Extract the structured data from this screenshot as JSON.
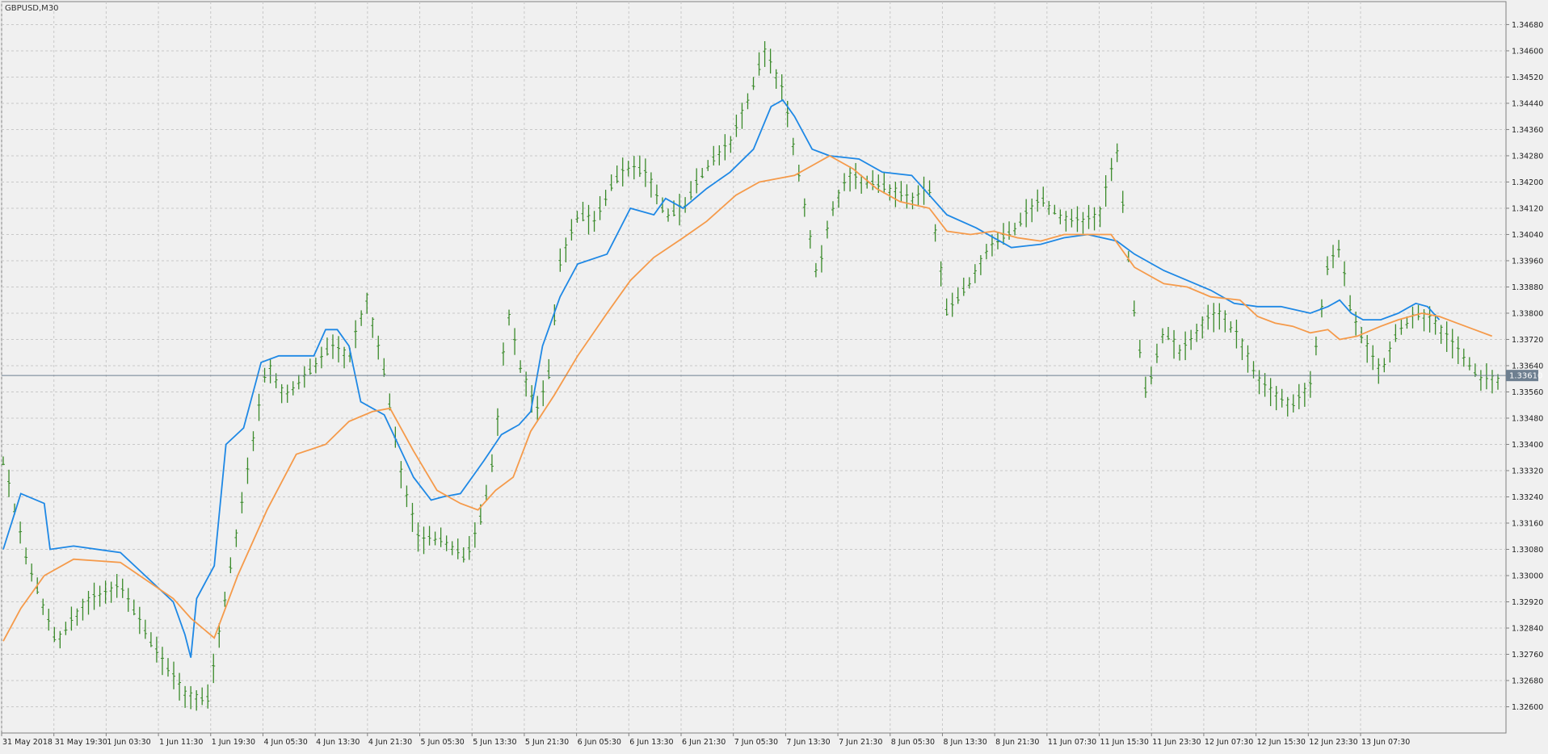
{
  "chart_data": {
    "type": "line",
    "symbol_label": "GBPUSD,M30",
    "current_price_label": "1.33610",
    "current_price": 1.3361,
    "ylim": [
      1.3252,
      1.3475
    ],
    "y_ticks": [
      "1.34680",
      "1.34600",
      "1.34520",
      "1.34440",
      "1.34360",
      "1.34280",
      "1.34200",
      "1.34120",
      "1.34040",
      "1.33960",
      "1.33880",
      "1.33800",
      "1.33720",
      "1.33640",
      "1.33560",
      "1.33480",
      "1.33400",
      "1.33320",
      "1.33240",
      "1.33160",
      "1.33080",
      "1.33000",
      "1.32920",
      "1.32840",
      "1.32760",
      "1.32680",
      "1.32600"
    ],
    "x_ticks": [
      "31 May 2018",
      "31 May 19:30",
      "1 Jun 03:30",
      "1 Jun 11:30",
      "1 Jun 19:30",
      "4 Jun 05:30",
      "4 Jun 13:30",
      "4 Jun 21:30",
      "5 Jun 05:30",
      "5 Jun 13:30",
      "5 Jun 21:30",
      "6 Jun 05:30",
      "6 Jun 13:30",
      "6 Jun 21:30",
      "7 Jun 05:30",
      "7 Jun 13:30",
      "7 Jun 21:30",
      "8 Jun 05:30",
      "8 Jun 13:30",
      "8 Jun 21:30",
      "11 Jun 07:30",
      "11 Jun 15:30",
      "11 Jun 23:30",
      "12 Jun 07:30",
      "12 Jun 15:30",
      "12 Jun 23:30",
      "13 Jun 07:30"
    ],
    "grid": true,
    "colors": {
      "background": "#f0f0f0",
      "grid": "#c8c8c8",
      "axis": "#808080",
      "price_bars": "#3a8a2a",
      "series_blue": "#1e88e5",
      "series_orange": "#f59a4a",
      "current_price_line": "#6e7f90",
      "current_price_box": "#6e7f90"
    },
    "price_bars": {
      "bar_count": 264,
      "path": [
        [
          0,
          1.3335
        ],
        [
          8,
          1.3305
        ],
        [
          18,
          1.328
        ],
        [
          28,
          1.3292
        ],
        [
          40,
          1.3297
        ],
        [
          52,
          1.3277
        ],
        [
          62,
          1.3264
        ],
        [
          70,
          1.3262
        ],
        [
          76,
          1.3295
        ],
        [
          84,
          1.3335
        ],
        [
          90,
          1.3365
        ],
        [
          96,
          1.3355
        ],
        [
          104,
          1.3362
        ],
        [
          112,
          1.337
        ],
        [
          118,
          1.3367
        ],
        [
          124,
          1.3385
        ],
        [
          130,
          1.3362
        ],
        [
          136,
          1.333
        ],
        [
          142,
          1.331
        ],
        [
          146,
          1.3312
        ],
        [
          152,
          1.331
        ],
        [
          158,
          1.3305
        ],
        [
          164,
          1.332
        ],
        [
          168,
          1.334
        ],
        [
          172,
          1.3382
        ],
        [
          176,
          1.3365
        ],
        [
          182,
          1.335
        ],
        [
          186,
          1.336
        ],
        [
          190,
          1.3395
        ],
        [
          196,
          1.341
        ],
        [
          202,
          1.3408
        ],
        [
          208,
          1.342
        ],
        [
          214,
          1.3425
        ],
        [
          220,
          1.3422
        ],
        [
          226,
          1.341
        ],
        [
          232,
          1.3412
        ],
        [
          240,
          1.3425
        ],
        [
          248,
          1.3432
        ],
        [
          254,
          1.3445
        ],
        [
          260,
          1.346
        ],
        [
          266,
          1.3448
        ],
        [
          272,
          1.342
        ],
        [
          278,
          1.339
        ],
        [
          282,
          1.341
        ],
        [
          288,
          1.3422
        ],
        [
          296,
          1.342
        ],
        [
          302,
          1.3418
        ],
        [
          310,
          1.3415
        ],
        [
          316,
          1.3418
        ],
        [
          322,
          1.338
        ],
        [
          330,
          1.339
        ],
        [
          336,
          1.34
        ],
        [
          344,
          1.3405
        ],
        [
          354,
          1.3415
        ],
        [
          362,
          1.3409
        ],
        [
          368,
          1.3408
        ],
        [
          374,
          1.341
        ],
        [
          380,
          1.343
        ],
        [
          386,
          1.338
        ],
        [
          390,
          1.3355
        ],
        [
          396,
          1.3375
        ],
        [
          402,
          1.3368
        ],
        [
          410,
          1.3378
        ],
        [
          416,
          1.338
        ],
        [
          422,
          1.3372
        ],
        [
          428,
          1.336
        ],
        [
          434,
          1.3355
        ],
        [
          440,
          1.3352
        ],
        [
          446,
          1.3358
        ],
        [
          452,
          1.3395
        ],
        [
          456,
          1.34
        ],
        [
          460,
          1.338
        ],
        [
          464,
          1.3372
        ],
        [
          470,
          1.3362
        ],
        [
          476,
          1.3375
        ],
        [
          482,
          1.338
        ],
        [
          488,
          1.3378
        ],
        [
          494,
          1.3371
        ],
        [
          500,
          1.3365
        ],
        [
          504,
          1.336
        ],
        [
          510,
          1.336
        ]
      ],
      "wick": 0.00022
    },
    "series": [
      {
        "color_key": "series_blue",
        "points": [
          [
            0,
            1.3308
          ],
          [
            6,
            1.3325
          ],
          [
            14,
            1.3322
          ],
          [
            16,
            1.3308
          ],
          [
            24,
            1.3309
          ],
          [
            40,
            1.3307
          ],
          [
            58,
            1.3292
          ],
          [
            62,
            1.3282
          ],
          [
            64,
            1.3275
          ],
          [
            66,
            1.3293
          ],
          [
            72,
            1.3303
          ],
          [
            76,
            1.334
          ],
          [
            82,
            1.3345
          ],
          [
            88,
            1.3365
          ],
          [
            94,
            1.3367
          ],
          [
            100,
            1.3367
          ],
          [
            106,
            1.3367
          ],
          [
            110,
            1.3375
          ],
          [
            114,
            1.3375
          ],
          [
            118,
            1.337
          ],
          [
            122,
            1.3353
          ],
          [
            130,
            1.3349
          ],
          [
            140,
            1.333
          ],
          [
            146,
            1.3323
          ],
          [
            150,
            1.3324
          ],
          [
            156,
            1.3325
          ],
          [
            160,
            1.333
          ],
          [
            164,
            1.3335
          ],
          [
            170,
            1.3343
          ],
          [
            176,
            1.3346
          ],
          [
            180,
            1.335
          ],
          [
            184,
            1.337
          ],
          [
            190,
            1.3385
          ],
          [
            196,
            1.3395
          ],
          [
            206,
            1.3398
          ],
          [
            210,
            1.3405
          ],
          [
            214,
            1.3412
          ],
          [
            222,
            1.341
          ],
          [
            226,
            1.3415
          ],
          [
            232,
            1.3412
          ],
          [
            240,
            1.3418
          ],
          [
            248,
            1.3423
          ],
          [
            256,
            1.343
          ],
          [
            262,
            1.3443
          ],
          [
            266,
            1.3445
          ],
          [
            270,
            1.344
          ],
          [
            276,
            1.343
          ],
          [
            282,
            1.3428
          ],
          [
            292,
            1.3427
          ],
          [
            300,
            1.3423
          ],
          [
            310,
            1.3422
          ],
          [
            322,
            1.341
          ],
          [
            332,
            1.3406
          ],
          [
            344,
            1.34
          ],
          [
            354,
            1.3401
          ],
          [
            362,
            1.3403
          ],
          [
            370,
            1.3404
          ],
          [
            380,
            1.3402
          ],
          [
            386,
            1.3398
          ],
          [
            396,
            1.3393
          ],
          [
            404,
            1.339
          ],
          [
            412,
            1.3387
          ],
          [
            420,
            1.3383
          ],
          [
            428,
            1.3382
          ],
          [
            436,
            1.3382
          ],
          [
            446,
            1.338
          ],
          [
            452,
            1.3382
          ],
          [
            456,
            1.3384
          ],
          [
            460,
            1.338
          ],
          [
            464,
            1.3378
          ],
          [
            470,
            1.3378
          ],
          [
            476,
            1.338
          ],
          [
            482,
            1.3383
          ],
          [
            486,
            1.3382
          ],
          [
            490,
            1.3378
          ]
        ]
      },
      {
        "color_key": "series_orange",
        "points": [
          [
            0,
            1.328
          ],
          [
            6,
            1.329
          ],
          [
            14,
            1.33
          ],
          [
            24,
            1.3305
          ],
          [
            40,
            1.3304
          ],
          [
            58,
            1.3293
          ],
          [
            64,
            1.3287
          ],
          [
            72,
            1.3281
          ],
          [
            80,
            1.33
          ],
          [
            90,
            1.332
          ],
          [
            100,
            1.3337
          ],
          [
            110,
            1.334
          ],
          [
            118,
            1.3347
          ],
          [
            126,
            1.335
          ],
          [
            132,
            1.3351
          ],
          [
            140,
            1.3338
          ],
          [
            148,
            1.3326
          ],
          [
            156,
            1.3322
          ],
          [
            162,
            1.332
          ],
          [
            168,
            1.3326
          ],
          [
            174,
            1.333
          ],
          [
            180,
            1.3344
          ],
          [
            188,
            1.3355
          ],
          [
            196,
            1.3367
          ],
          [
            206,
            1.338
          ],
          [
            214,
            1.339
          ],
          [
            222,
            1.3397
          ],
          [
            232,
            1.3403
          ],
          [
            240,
            1.3408
          ],
          [
            250,
            1.3416
          ],
          [
            258,
            1.342
          ],
          [
            264,
            1.3421
          ],
          [
            270,
            1.3422
          ],
          [
            276,
            1.3425
          ],
          [
            282,
            1.3428
          ],
          [
            290,
            1.3424
          ],
          [
            298,
            1.3418
          ],
          [
            306,
            1.3414
          ],
          [
            316,
            1.3412
          ],
          [
            322,
            1.3405
          ],
          [
            330,
            1.3404
          ],
          [
            338,
            1.3405
          ],
          [
            346,
            1.3403
          ],
          [
            354,
            1.3402
          ],
          [
            362,
            1.3404
          ],
          [
            370,
            1.3404
          ],
          [
            378,
            1.3404
          ],
          [
            386,
            1.3394
          ],
          [
            396,
            1.3389
          ],
          [
            404,
            1.3388
          ],
          [
            412,
            1.3385
          ],
          [
            422,
            1.3384
          ],
          [
            428,
            1.3379
          ],
          [
            434,
            1.3377
          ],
          [
            440,
            1.3376
          ],
          [
            446,
            1.3374
          ],
          [
            452,
            1.3375
          ],
          [
            456,
            1.3372
          ],
          [
            462,
            1.3373
          ],
          [
            470,
            1.3376
          ],
          [
            476,
            1.3378
          ],
          [
            484,
            1.338
          ],
          [
            490,
            1.3379
          ],
          [
            496,
            1.3377
          ],
          [
            502,
            1.3375
          ],
          [
            508,
            1.3373
          ]
        ]
      }
    ]
  }
}
